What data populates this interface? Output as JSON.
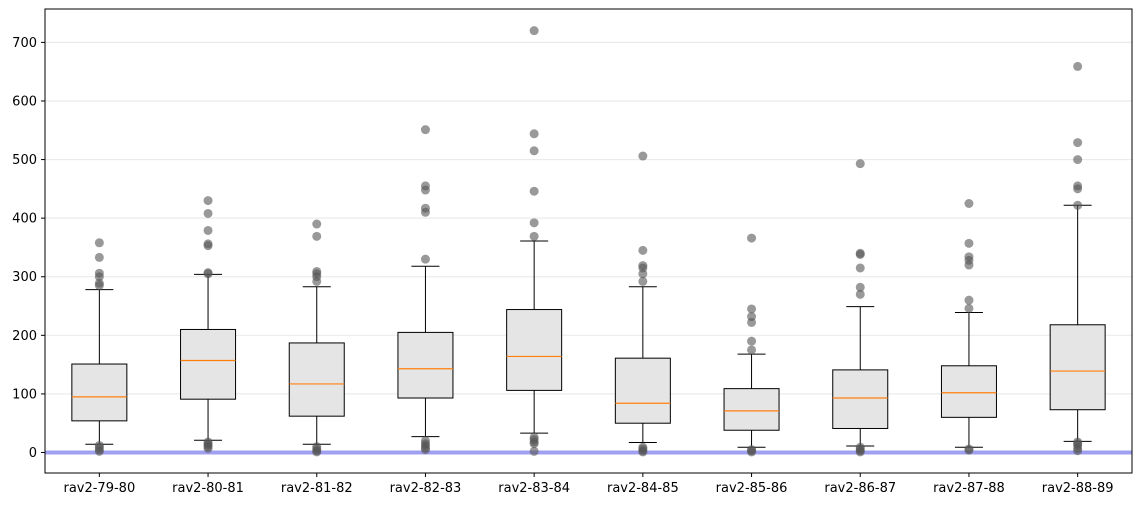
{
  "chart_data": {
    "type": "box",
    "title": "",
    "xlabel": "",
    "ylabel": "",
    "ylim": [
      -35,
      757
    ],
    "yticks": [
      0,
      100,
      200,
      300,
      400,
      500,
      600,
      700
    ],
    "grid": "horizontal",
    "reference_line": {
      "y": 0,
      "color": "#a0a0f0"
    },
    "colors": {
      "box_fill": "#e5e5e5",
      "median": "#ff7f0e",
      "outlier": "#555555",
      "edge": "#000000"
    },
    "categories": [
      "rav2-79-80",
      "rav2-80-81",
      "rav2-81-82",
      "rav2-82-83",
      "rav2-83-84",
      "rav2-84-85",
      "rav2-85-86",
      "rav2-86-87",
      "rav2-87-88",
      "rav2-88-89"
    ],
    "boxes": [
      {
        "label": "rav2-79-80",
        "whisker_low": 14,
        "q1": 54,
        "median": 95,
        "q3": 151,
        "whisker_high": 278,
        "outliers": [
          358,
          333,
          306,
          300,
          289,
          285,
          12,
          9,
          5,
          2
        ]
      },
      {
        "label": "rav2-80-81",
        "whisker_low": 21,
        "q1": 91,
        "median": 157,
        "q3": 210,
        "whisker_high": 304,
        "outliers": [
          430,
          408,
          379,
          356,
          353,
          307,
          305,
          18,
          15,
          13,
          10,
          7
        ]
      },
      {
        "label": "rav2-81-82",
        "whisker_low": 14,
        "q1": 62,
        "median": 117,
        "q3": 187,
        "whisker_high": 283,
        "outliers": [
          390,
          369,
          309,
          305,
          300,
          292,
          10,
          6,
          3,
          1
        ]
      },
      {
        "label": "rav2-82-83",
        "whisker_low": 27,
        "q1": 93,
        "median": 143,
        "q3": 205,
        "whisker_high": 318,
        "outliers": [
          551,
          455,
          448,
          417,
          410,
          330,
          20,
          15,
          12,
          8,
          5
        ]
      },
      {
        "label": "rav2-83-84",
        "whisker_low": 33,
        "q1": 106,
        "median": 164,
        "q3": 244,
        "whisker_high": 361,
        "outliers": [
          720,
          544,
          515,
          446,
          392,
          369,
          26,
          22,
          18,
          15,
          2
        ]
      },
      {
        "label": "rav2-84-85",
        "whisker_low": 17,
        "q1": 50,
        "median": 84,
        "q3": 161,
        "whisker_high": 283,
        "outliers": [
          506,
          345,
          319,
          315,
          305,
          292,
          9,
          6,
          3,
          1
        ]
      },
      {
        "label": "rav2-85-86",
        "whisker_low": 9,
        "q1": 38,
        "median": 71,
        "q3": 109,
        "whisker_high": 168,
        "outliers": [
          366,
          245,
          232,
          222,
          190,
          175,
          5,
          3,
          1
        ]
      },
      {
        "label": "rav2-86-87",
        "whisker_low": 11,
        "q1": 41,
        "median": 93,
        "q3": 141,
        "whisker_high": 249,
        "outliers": [
          493,
          340,
          338,
          315,
          282,
          270,
          9,
          6,
          3,
          1
        ]
      },
      {
        "label": "rav2-87-88",
        "whisker_low": 9,
        "q1": 60,
        "median": 102,
        "q3": 148,
        "whisker_high": 239,
        "outliers": [
          425,
          357,
          334,
          328,
          320,
          260,
          246,
          6,
          4
        ]
      },
      {
        "label": "rav2-88-89",
        "whisker_low": 19,
        "q1": 73,
        "median": 139,
        "q3": 218,
        "whisker_high": 422,
        "outliers": [
          659,
          529,
          500,
          455,
          450,
          422,
          18,
          15,
          12,
          7,
          3
        ]
      }
    ]
  }
}
